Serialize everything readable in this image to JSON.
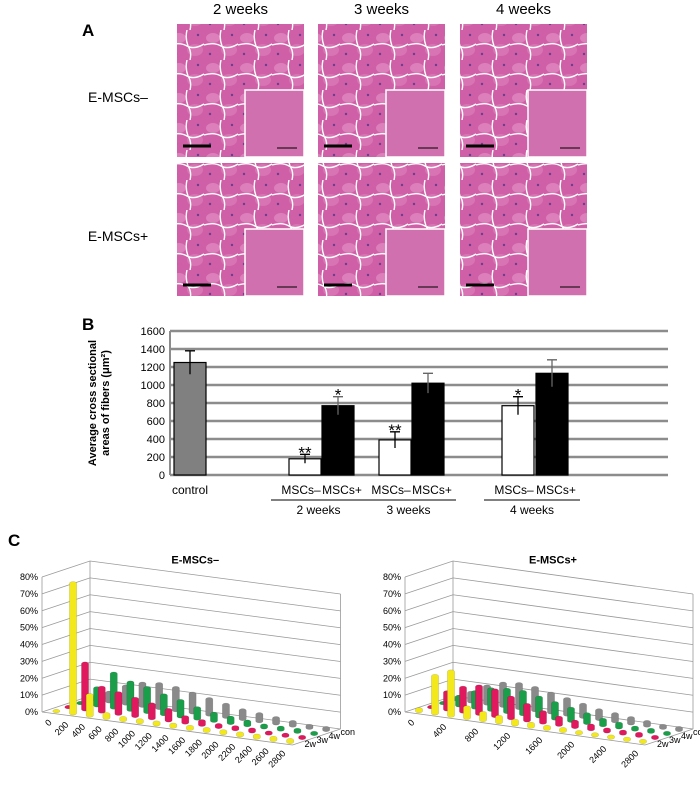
{
  "panel_a": {
    "label": "A",
    "columns": [
      "2 weeks",
      "3 weeks",
      "4 weeks"
    ],
    "rows": [
      "E-MSCs–",
      "E-MSCs+"
    ]
  },
  "chart_data": [
    {
      "type": "bar",
      "panel_label": "B",
      "ylabel": [
        "Average cross sectional",
        "areas of fibers (μm²)"
      ],
      "categories": [
        "control",
        "MSCs–",
        "MSCs+",
        "MSCs–",
        "MSCs+",
        "MSCs–",
        "MSCs+"
      ],
      "groups": [
        "2 weeks",
        "3 weeks",
        "4 weeks"
      ],
      "values": [
        1250,
        180,
        770,
        390,
        1020,
        770,
        1130
      ],
      "errors": [
        130,
        50,
        100,
        90,
        110,
        100,
        150
      ],
      "colors": [
        "#808080",
        "#ffffff",
        "#000000",
        "#ffffff",
        "#000000",
        "#ffffff",
        "#000000"
      ],
      "annotations": [
        null,
        "**",
        "*",
        "**",
        null,
        "*",
        null
      ],
      "ylim": [
        0,
        1600
      ],
      "yticks": [
        0,
        200,
        400,
        600,
        800,
        1000,
        1200,
        1400,
        1600
      ],
      "grid": true
    },
    {
      "type": "bar3d",
      "panel_label": "C",
      "title": "E-MSCs–",
      "categories": [
        0,
        200,
        400,
        600,
        800,
        1000,
        1200,
        1400,
        1600,
        1800,
        2000,
        2200,
        2400,
        2600,
        2800
      ],
      "series": [
        {
          "name": "2w",
          "color": "#f2e81c",
          "values": [
            0,
            77,
            12,
            2,
            1,
            1,
            1,
            1,
            1,
            1,
            1,
            1,
            1,
            1,
            1
          ]
        },
        {
          "name": "3w",
          "color": "#e0195e",
          "values": [
            0,
            27,
            14,
            12,
            10,
            8,
            6,
            3,
            2,
            1,
            1,
            1,
            0.5,
            0.5,
            0.5
          ]
        },
        {
          "name": "4w",
          "color": "#1a9e4a",
          "values": [
            0,
            10,
            20,
            16,
            14,
            11,
            9,
            6,
            4,
            3,
            2,
            1,
            1,
            1,
            0.5
          ]
        },
        {
          "name": "con",
          "color": "#8a8a8a",
          "values": [
            0,
            5,
            10,
            13,
            14,
            13,
            11,
            9,
            7,
            5,
            4,
            3,
            2,
            1,
            1
          ]
        }
      ],
      "ylim": [
        0,
        80
      ],
      "yticks": [
        {
          "value": 0,
          "label": "0%"
        },
        {
          "value": 10,
          "label": "10%"
        },
        {
          "value": 20,
          "label": "20%"
        },
        {
          "value": 30,
          "label": "30%"
        },
        {
          "value": 40,
          "label": "40%"
        },
        {
          "value": 50,
          "label": "50%"
        },
        {
          "value": 60,
          "label": "60%"
        },
        {
          "value": 70,
          "label": "70%"
        },
        {
          "value": 80,
          "label": "80%"
        }
      ]
    },
    {
      "type": "bar3d",
      "title": "E-MSCs+",
      "categories": [
        0,
        null,
        400,
        null,
        800,
        null,
        1200,
        null,
        1600,
        null,
        2000,
        null,
        2400,
        null,
        2800
      ],
      "series": [
        {
          "name": "2w",
          "color": "#f2e81c",
          "values": [
            1,
            22,
            26,
            6,
            4,
            3,
            2,
            1.5,
            1,
            1,
            0.5,
            0.5,
            0.5,
            0.5,
            0.5
          ]
        },
        {
          "name": "3w",
          "color": "#e0195e",
          "values": [
            0,
            10,
            14,
            16,
            15,
            12,
            9,
            6,
            4,
            3,
            2,
            1,
            1,
            1,
            0.5
          ]
        },
        {
          "name": "4w",
          "color": "#1a9e4a",
          "values": [
            0,
            5,
            9,
            12,
            13,
            13,
            11,
            9,
            7,
            5,
            3,
            2,
            1,
            1,
            0.5
          ]
        },
        {
          "name": "con",
          "color": "#8a8a8a",
          "values": [
            0,
            5,
            10,
            13,
            14,
            13,
            11,
            9,
            7,
            5,
            4,
            3,
            2,
            1,
            1
          ]
        }
      ],
      "ylim": [
        0,
        80
      ],
      "yticks": [
        {
          "value": 0,
          "label": "0%"
        },
        {
          "value": 10,
          "label": "10%"
        },
        {
          "value": 20,
          "label": "20%"
        },
        {
          "value": 30,
          "label": "30%"
        },
        {
          "value": 40,
          "label": "40%"
        },
        {
          "value": 50,
          "label": "50%"
        },
        {
          "value": 60,
          "label": "60%"
        },
        {
          "value": 70,
          "label": "70%"
        },
        {
          "value": 80,
          "label": "80%"
        }
      ]
    }
  ]
}
